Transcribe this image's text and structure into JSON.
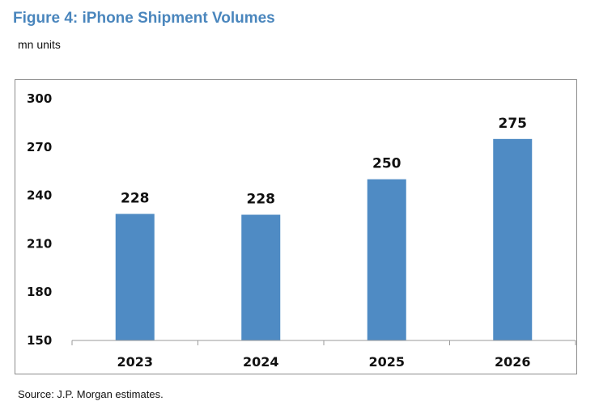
{
  "figure": {
    "title": "Figure 4: iPhone Shipment Volumes",
    "subtitle": "mn units",
    "source": "Source: J.P. Morgan estimates."
  },
  "colors": {
    "title": "#4a86bd",
    "bar": "#4f8bc4",
    "axis": "#9a9a9a",
    "frame": "#8c8c8c"
  },
  "chart_data": {
    "type": "bar",
    "title": "Figure 4: iPhone Shipment Volumes",
    "ylabel": "mn units",
    "xlabel": "",
    "categories": [
      "2023",
      "2024",
      "2025",
      "2026"
    ],
    "values": [
      228.5,
      228,
      250,
      275
    ],
    "data_labels": [
      "228",
      "228",
      "250",
      "275"
    ],
    "yticks": [
      150,
      180,
      210,
      240,
      270,
      300
    ],
    "ylim": [
      150,
      300
    ],
    "grid": false,
    "legend": "none"
  }
}
